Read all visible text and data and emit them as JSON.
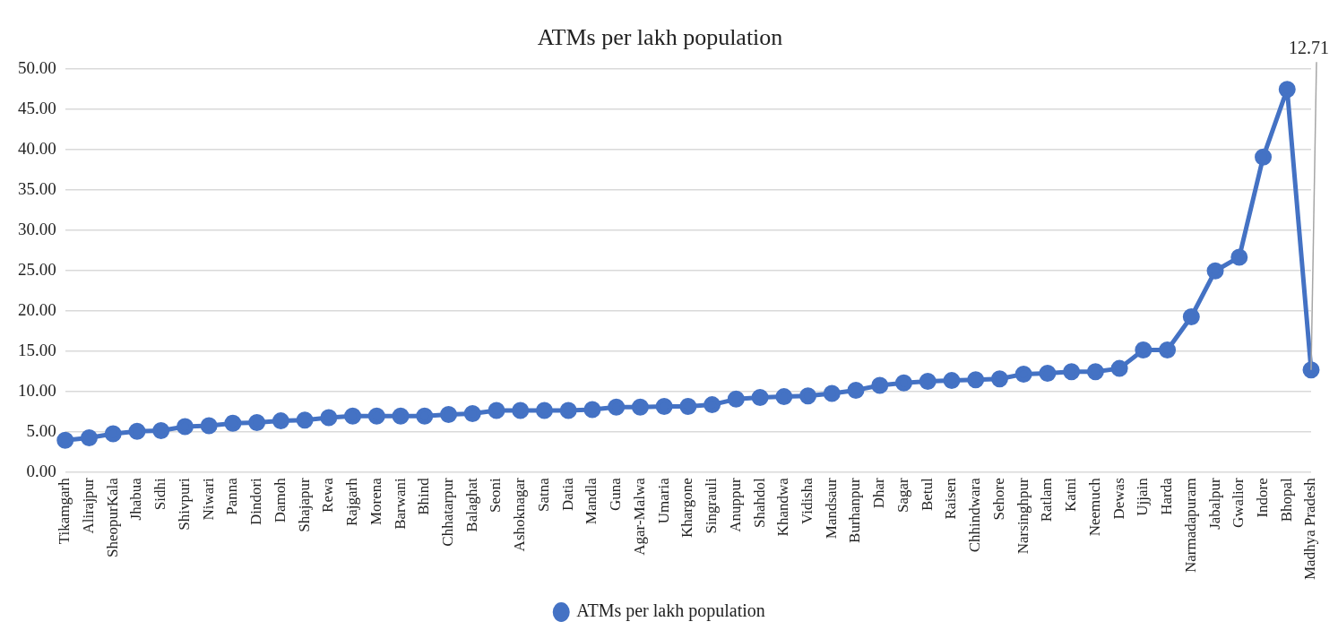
{
  "chart_data": {
    "type": "line",
    "title": "ATMs per lakh population",
    "categories": [
      "Tikamgarh",
      "Alirajpur",
      "SheopurKala",
      "Jhabua",
      "Sidhi",
      "Shivpuri",
      "Niwari",
      "Panna",
      "Dindori",
      "Damoh",
      "Shajapur",
      "Rewa",
      "Rajgarh",
      "Morena",
      "Barwani",
      "Bhind",
      "Chhatarpur",
      "Balaghat",
      "Seoni",
      "Ashoknagar",
      "Satna",
      "Datia",
      "Mandla",
      "Guna",
      "Agar-Malwa",
      "Umaria",
      "Khargone",
      "Singrauli",
      "Anuppur",
      "Shahdol",
      "Khandwa",
      "Vidisha",
      "Mandsaur",
      "Burhanpur",
      "Dhar",
      "Sagar",
      "Betul",
      "Raisen",
      "Chhindwara",
      "Sehore",
      "Narsinghpur",
      "Ratlam",
      "Katni",
      "Neemuch",
      "Dewas",
      "Ujjain",
      "Harda",
      "Narmadapuram",
      "Jabalpur",
      "Gwalior",
      "Indore",
      "Bhopal",
      "Madhya Pradesh"
    ],
    "series": [
      {
        "name": "ATMs per lakh population",
        "color": "#4472c4",
        "values": [
          4.0,
          4.3,
          4.8,
          5.1,
          5.2,
          5.7,
          5.8,
          6.1,
          6.2,
          6.4,
          6.5,
          6.8,
          7.0,
          7.0,
          7.0,
          7.0,
          7.2,
          7.3,
          7.7,
          7.7,
          7.7,
          7.7,
          7.8,
          8.1,
          8.1,
          8.2,
          8.2,
          8.4,
          9.1,
          9.3,
          9.4,
          9.5,
          9.8,
          10.2,
          10.8,
          11.1,
          11.3,
          11.4,
          11.5,
          11.6,
          12.2,
          12.3,
          12.5,
          12.5,
          12.9,
          15.2,
          15.2,
          19.3,
          25.0,
          26.7,
          39.1,
          47.5,
          12.71
        ]
      }
    ],
    "ylim": [
      0,
      50
    ],
    "yticks": [
      {
        "value": 0,
        "label": "0.00"
      },
      {
        "value": 5,
        "label": "5.00"
      },
      {
        "value": 10,
        "label": "10.00"
      },
      {
        "value": 15,
        "label": "15.00"
      },
      {
        "value": 20,
        "label": "20.00"
      },
      {
        "value": 25,
        "label": "25.00"
      },
      {
        "value": 30,
        "label": "30.00"
      },
      {
        "value": 35,
        "label": "35.00"
      },
      {
        "value": 40,
        "label": "40.00"
      },
      {
        "value": 45,
        "label": "45.00"
      },
      {
        "value": 50,
        "label": "50.00"
      }
    ],
    "annotations": [
      {
        "text": "12.71",
        "x": "Madhya Pradesh",
        "y": 12.71
      }
    ],
    "grid": "y",
    "legend": "bottom",
    "marker": "circle",
    "line_style": "solid"
  }
}
